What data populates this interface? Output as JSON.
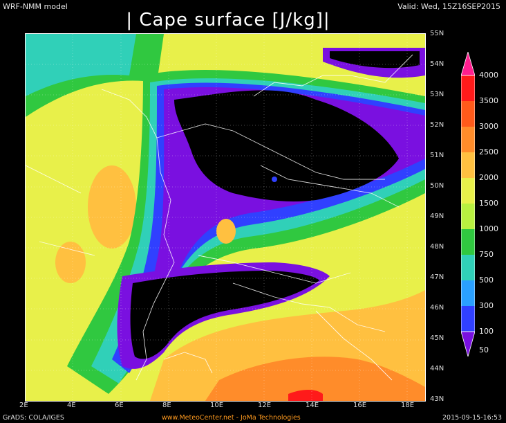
{
  "header": {
    "model": "WRF-NMM model",
    "valid": "Valid: Wed, 15Z16SEP2015",
    "title": "| Cape surface [J/kg]|"
  },
  "map": {
    "lat_labels": [
      "55N",
      "54N",
      "53N",
      "52N",
      "51N",
      "50N",
      "49N",
      "48N",
      "47N",
      "46N",
      "45N",
      "44N",
      "43N"
    ],
    "lon_labels": [
      "2E",
      "4E",
      "6E",
      "8E",
      "10E",
      "12E",
      "14E",
      "16E",
      "18E"
    ]
  },
  "colorbar": {
    "levels": [
      "4000",
      "3500",
      "3000",
      "2500",
      "2000",
      "1500",
      "1000",
      "750",
      "500",
      "300",
      "100",
      "50"
    ],
    "colors": [
      "#ff1f8f",
      "#ff1a1a",
      "#ff5a1a",
      "#ff8c2a",
      "#ffc040",
      "#e8f04a",
      "#b8f040",
      "#30c840",
      "#30d0b8",
      "#2aa0ff",
      "#3040ff",
      "#7a10e0"
    ]
  },
  "footer": {
    "grads": "GrADS: COLA/IGES",
    "credit": "www.MeteoCenter.net  -  JoMa Technologies",
    "timestamp": "2015-09-15-16:53"
  }
}
